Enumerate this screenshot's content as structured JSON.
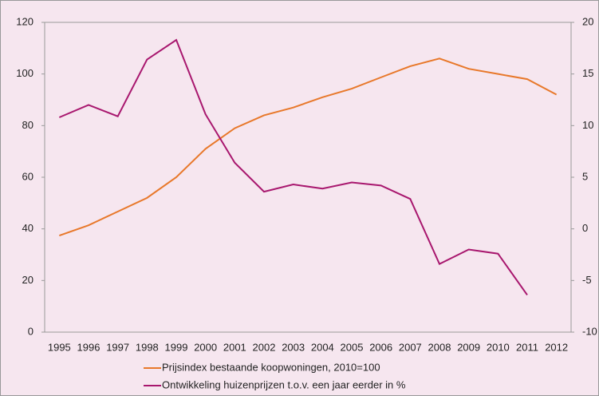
{
  "chart_data": {
    "type": "line",
    "categories": [
      "1995",
      "1996",
      "1997",
      "1998",
      "1999",
      "2000",
      "2001",
      "2002",
      "2003",
      "2004",
      "2005",
      "2006",
      "2007",
      "2008",
      "2009",
      "2010",
      "2011",
      "2012"
    ],
    "series": [
      {
        "name": "Prijsindex bestaande koopwoningen, 2010=100",
        "color": "#e8782a",
        "values": [
          37.4,
          41.4,
          46.7,
          52,
          60,
          71,
          79,
          84,
          87,
          91,
          94.3,
          98.7,
          103,
          106,
          102,
          100,
          98,
          92
        ]
      },
      {
        "name": "Ontwikkeling huizenprijzen t.o.v. een jaar eerder in %",
        "color": "#a8176e",
        "axis": "y2",
        "values": [
          10.8,
          12,
          10.9,
          16.4,
          18.3,
          11.1,
          6.4,
          3.6,
          4.3,
          3.9,
          4.5,
          4.2,
          2.9,
          -3.4,
          -2.0,
          -2.4,
          -6.4,
          null
        ]
      }
    ],
    "ylim": [
      0,
      120
    ],
    "yticks": [
      0,
      20,
      40,
      60,
      80,
      100,
      120
    ],
    "y2lim": [
      -10,
      20
    ],
    "y2ticks": [
      -10,
      -5,
      0,
      5,
      10,
      15,
      20
    ],
    "grid": false,
    "legend": "bottom"
  }
}
